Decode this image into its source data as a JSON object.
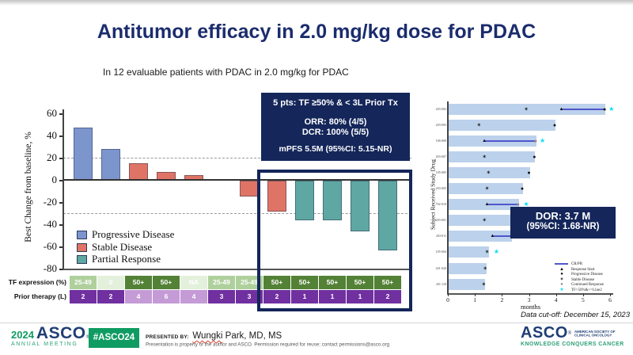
{
  "slide": {
    "title": "Antitumor efficacy in 2.0 mg/kg dose for PDAC",
    "subtitle": "In 12 evaluable patients with PDAC in 2.0 mg/kg for PDAC"
  },
  "info_box": {
    "line1": "5 pts: TF ≥50% & < 3L Prior Tx",
    "line2": "ORR: 80% (4/5)",
    "line3": "DCR: 100% (5/5)",
    "line4": "mPFS 5.5M (95%CI: 5.15-NR)"
  },
  "dor_box": {
    "line1": "DOR: 3.7 M",
    "line2": "(95%CI: 1.68-NR)"
  },
  "data_cutoff": "Data cut-off: December 15, 2023",
  "chart_data": [
    {
      "type": "bar",
      "name": "waterfall",
      "ylabel": "Best Change from baseline, %",
      "ylim": [
        -80,
        60
      ],
      "yticks": [
        60,
        40,
        20,
        0,
        -20,
        -40,
        -60,
        -80
      ],
      "reference_lines": [
        20,
        -30
      ],
      "grid": false,
      "values": [
        47,
        28,
        15,
        7,
        4,
        0,
        -14,
        -28,
        -36,
        -36,
        -46,
        -63
      ],
      "responses": [
        "PD",
        "PD",
        "SD",
        "SD",
        "SD",
        "SD",
        "SD",
        "SD",
        "PR",
        "PR",
        "PR",
        "PR"
      ],
      "legend": [
        {
          "key": "PD",
          "label": "Progressive Disease"
        },
        {
          "key": "SD",
          "label": "Stable Disease"
        },
        {
          "key": "PR",
          "label": "Partial Response"
        }
      ]
    },
    {
      "type": "swimmer",
      "name": "duration-on-study",
      "ylabel": "Subject Received Study Drug",
      "xlabel": "months",
      "xlim": [
        0,
        6
      ],
      "xticks": [
        0,
        1,
        2,
        3,
        4,
        5,
        6
      ],
      "subjects": [
        {
          "id": "203-002",
          "bar": 5.8,
          "sd": [
            2.9
          ],
          "line": [
            4.2,
            5.8
          ],
          "end": "pd",
          "cyan": 6.05
        },
        {
          "id": "203-003",
          "bar": 3.95,
          "sd": [
            1.15
          ],
          "end": "pd"
        },
        {
          "id": "106-009",
          "bar": 3.25,
          "line": [
            1.35,
            3.25
          ],
          "end": "cont",
          "cyan": 3.5
        },
        {
          "id": "203-007",
          "bar": 3.2,
          "sd": [
            1.35
          ],
          "end": "pd"
        },
        {
          "id": "105-005",
          "bar": 3.0,
          "sd": [
            1.5
          ],
          "end": "pd"
        },
        {
          "id": "203-005",
          "bar": 2.75,
          "sd": [
            1.45
          ],
          "end": "pd"
        },
        {
          "id": "702-010",
          "bar": 2.6,
          "line": [
            1.45,
            2.6
          ],
          "end": "cont",
          "cyan": 2.9
        },
        {
          "id": "203-001",
          "bar": 2.5,
          "sd": [
            1.35
          ],
          "end": "pd"
        },
        {
          "id": "203-011",
          "bar": 2.35,
          "line": [
            1.65,
            2.35
          ],
          "end": "pd",
          "cyan": 2.65
        },
        {
          "id": "105-004",
          "bar": 1.5,
          "sd": [
            1.45
          ],
          "cyan": 1.8
        },
        {
          "id": "201-026",
          "bar": 1.4,
          "sd": [
            1.38
          ]
        },
        {
          "id": "201-118",
          "bar": 1.35,
          "sd": [
            1.33
          ]
        }
      ],
      "legend": [
        {
          "symbol": "line",
          "label": "CR/PR"
        },
        {
          "symbol": "triangle",
          "label": "Response Start"
        },
        {
          "symbol": "circle",
          "label": "Progressive Disease"
        },
        {
          "symbol": "star",
          "label": "Stable Disease"
        },
        {
          "symbol": "circle-grey",
          "label": "Continued Response"
        },
        {
          "symbol": "star-cyan",
          "label": "TF>50%&<=Line2"
        }
      ]
    }
  ],
  "table": {
    "tf_row": {
      "label": "TF expression (%)",
      "cells": [
        {
          "text": "25-49",
          "shade": "mid"
        },
        {
          "text": "0",
          "shade": "pale"
        },
        {
          "text": "50+",
          "shade": "dark"
        },
        {
          "text": "50+",
          "shade": "dark"
        },
        {
          "text": "NA",
          "shade": "pale"
        },
        {
          "text": "25-49",
          "shade": "mid"
        },
        {
          "text": "25-49",
          "shade": "mid"
        },
        {
          "text": "50+",
          "shade": "dark"
        },
        {
          "text": "50+",
          "shade": "dark"
        },
        {
          "text": "50+",
          "shade": "dark"
        },
        {
          "text": "50+",
          "shade": "dark"
        },
        {
          "text": "50+",
          "shade": "dark"
        }
      ]
    },
    "therapy_row": {
      "label": "Prior therapy (L)",
      "cells": [
        {
          "text": "2",
          "shade": "dark"
        },
        {
          "text": "2",
          "shade": "dark"
        },
        {
          "text": "4",
          "shade": "light"
        },
        {
          "text": "6",
          "shade": "light"
        },
        {
          "text": "4",
          "shade": "light"
        },
        {
          "text": "3",
          "shade": "dark"
        },
        {
          "text": "3",
          "shade": "dark"
        },
        {
          "text": "2",
          "shade": "dark"
        },
        {
          "text": "1",
          "shade": "dark"
        },
        {
          "text": "1",
          "shade": "dark"
        },
        {
          "text": "1",
          "shade": "dark"
        },
        {
          "text": "2",
          "shade": "dark"
        }
      ]
    }
  },
  "footer": {
    "year": "2024",
    "asco_wordmark": "ASCO",
    "annual_meeting": "ANNUAL MEETING",
    "hashtag": "#ASCO24",
    "presented_by_label": "PRESENTED BY:",
    "presenter_underlined": "Wungki",
    "presenter_rest": " Park, MD, MS",
    "disclaimer": "Presentation is property of the author and ASCO. Permission required for reuse; contact permissions@asco.org",
    "asco_logo": "ASCO",
    "society_line1": "AMERICAN SOCIETY OF",
    "society_line2": "CLINICAL ONCOLOGY",
    "tagline": "KNOWLEDGE CONQUERS CANCER"
  },
  "colors": {
    "navy": "#14265a",
    "title_navy": "#1b2c6d",
    "bar_pd": "#7d95cd",
    "bar_sd": "#df7466",
    "bar_pr": "#5fa7a3",
    "table_green_dark": "#538135",
    "table_green_mid": "#afd09c",
    "table_green_pale": "#e3f0db",
    "purple_dark": "#7030a0",
    "purple_light": "#c49bd6",
    "swimmer_bar": "#bcd1eb",
    "crpr_line": "#5156cc",
    "cyan": "#00dff2",
    "grey_marker": "#8a8a8a",
    "green": "#0f9c63",
    "green2": "#2fa277",
    "asco_navy": "#203e75"
  }
}
